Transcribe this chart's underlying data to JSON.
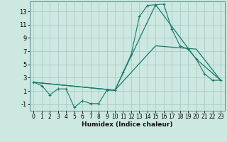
{
  "title": "",
  "xlabel": "Humidex (Indice chaleur)",
  "background_color": "#cce8e0",
  "grid_color": "#aaccc4",
  "line_color": "#1a7a6e",
  "xlim": [
    -0.5,
    23.5
  ],
  "ylim": [
    -2.0,
    14.5
  ],
  "yticks": [
    -1,
    1,
    3,
    5,
    7,
    9,
    11,
    13
  ],
  "xticks": [
    0,
    1,
    2,
    3,
    4,
    5,
    6,
    7,
    8,
    9,
    10,
    11,
    12,
    13,
    14,
    15,
    16,
    17,
    18,
    19,
    20,
    21,
    22,
    23
  ],
  "series1_x": [
    0,
    1,
    2,
    3,
    4,
    5,
    6,
    7,
    8,
    9,
    10,
    11,
    12,
    13,
    14,
    15,
    16,
    17,
    18,
    19,
    20,
    21,
    22,
    23
  ],
  "series1_y": [
    2.3,
    1.8,
    0.4,
    1.3,
    1.3,
    -1.5,
    -0.5,
    -0.9,
    -0.9,
    1.1,
    1.1,
    3.8,
    6.5,
    12.2,
    13.9,
    14.0,
    14.1,
    10.3,
    7.8,
    7.3,
    5.8,
    3.6,
    2.6,
    2.6
  ],
  "series2_x": [
    0,
    10,
    15,
    20,
    23
  ],
  "series2_y": [
    2.3,
    1.1,
    14.0,
    5.8,
    2.6
  ],
  "series3_x": [
    0,
    10,
    15,
    20,
    23
  ],
  "series3_y": [
    2.3,
    1.1,
    7.8,
    7.3,
    2.6
  ]
}
